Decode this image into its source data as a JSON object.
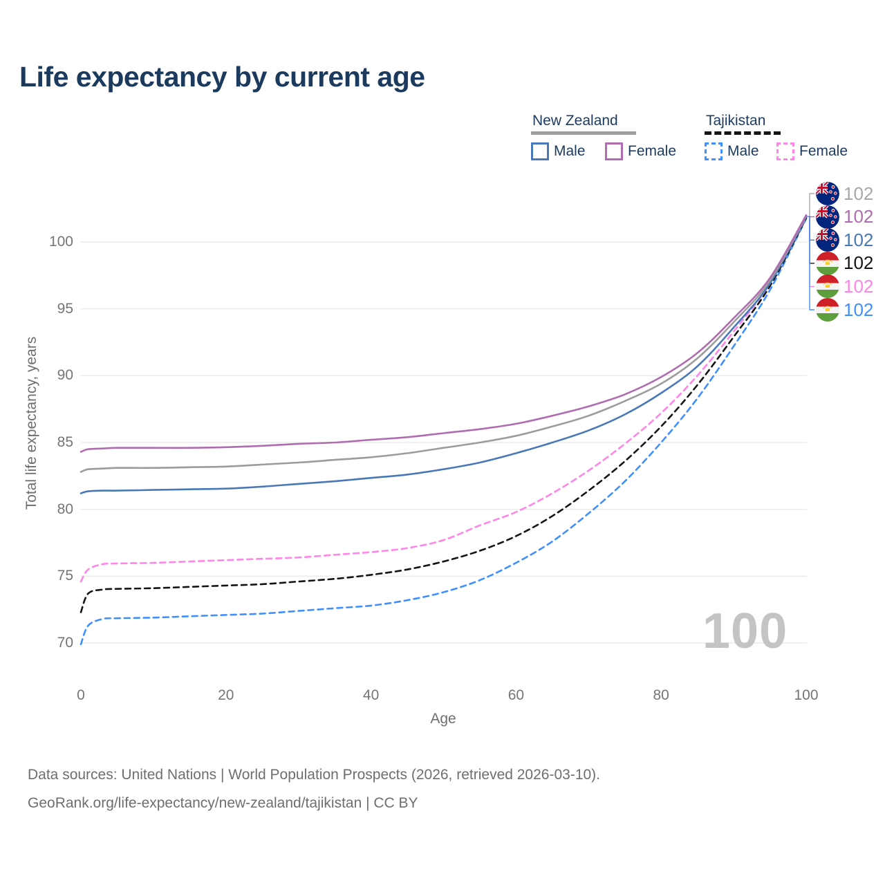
{
  "title": "Life expectancy by current age",
  "legend": {
    "groups": [
      {
        "country": "New Zealand",
        "line_style": "solid",
        "underline_color": "#9e9e9e",
        "items": [
          {
            "label": "Male",
            "color": "#4878b8"
          },
          {
            "label": "Female",
            "color": "#b06cb0"
          }
        ]
      },
      {
        "country": "Tajikistan",
        "line_style": "dashed",
        "underline_color": "#141414",
        "items": [
          {
            "label": "Male",
            "color": "#3f8fff"
          },
          {
            "label": "Female",
            "color": "#ff85e8"
          }
        ]
      }
    ]
  },
  "watermark_age": "100",
  "end_labels": [
    {
      "flag": "new-zealand",
      "value": "102",
      "color": "#a8a8a8"
    },
    {
      "flag": "new-zealand",
      "value": "102",
      "color": "#b06cb0"
    },
    {
      "flag": "new-zealand",
      "value": "102",
      "color": "#4878b8"
    },
    {
      "flag": "tajikistan",
      "value": "102",
      "color": "#141414"
    },
    {
      "flag": "tajikistan",
      "value": "102",
      "color": "#ff85e8"
    },
    {
      "flag": "tajikistan",
      "value": "102",
      "color": "#3f8fff"
    }
  ],
  "footer": {
    "line1": "Data sources: United Nations | World Population Prospects (2026, retrieved 2026-03-10).",
    "line2": "GeoRank.org/life-expectancy/new-zealand/tajikistan | CC BY"
  },
  "chart_data": {
    "type": "line",
    "title": "Life expectancy by current age",
    "xlabel": "Age",
    "ylabel": "Total life expectancy, years",
    "x_ticks": [
      0,
      20,
      40,
      60,
      80,
      100
    ],
    "y_ticks": [
      70,
      75,
      80,
      85,
      90,
      95,
      100
    ],
    "xlim": [
      0,
      100
    ],
    "ylim": [
      68,
      104
    ],
    "grid": "horizontal-only",
    "legend_position": "top-right",
    "x": [
      0,
      1,
      3,
      5,
      10,
      15,
      20,
      25,
      30,
      35,
      40,
      45,
      50,
      55,
      60,
      65,
      70,
      75,
      80,
      85,
      90,
      95,
      100
    ],
    "series": [
      {
        "name": "Tajikistan Male",
        "color": "#3f8fff",
        "dash": "dashed",
        "values": [
          69.9,
          71.3,
          71.8,
          71.85,
          71.9,
          72.0,
          72.1,
          72.2,
          72.4,
          72.6,
          72.8,
          73.2,
          73.8,
          74.7,
          76.0,
          77.6,
          79.7,
          82.1,
          85.0,
          88.3,
          92.2,
          96.4,
          101.75
        ]
      },
      {
        "name": "Tajikistan Both sexes",
        "color": "#141414",
        "dash": "dashed",
        "values": [
          72.3,
          73.7,
          74.0,
          74.05,
          74.1,
          74.2,
          74.3,
          74.4,
          74.6,
          74.8,
          75.1,
          75.5,
          76.1,
          76.9,
          78.0,
          79.5,
          81.4,
          83.6,
          86.2,
          89.3,
          92.9,
          96.7,
          101.8
        ]
      },
      {
        "name": "Tajikistan Female",
        "color": "#ff85e8",
        "dash": "dashed",
        "values": [
          74.6,
          75.5,
          75.9,
          75.95,
          76.0,
          76.1,
          76.2,
          76.3,
          76.4,
          76.6,
          76.8,
          77.1,
          77.7,
          78.8,
          79.8,
          81.2,
          82.9,
          84.9,
          87.2,
          90.0,
          93.3,
          96.9,
          101.85
        ]
      },
      {
        "name": "New Zealand Male",
        "color": "#4878b8",
        "dash": "solid",
        "values": [
          81.2,
          81.35,
          81.4,
          81.4,
          81.45,
          81.5,
          81.55,
          81.7,
          81.9,
          82.1,
          82.35,
          82.6,
          83.0,
          83.5,
          84.2,
          85.0,
          85.9,
          87.1,
          88.7,
          90.7,
          93.6,
          96.9,
          101.9
        ]
      },
      {
        "name": "New Zealand Both sexes",
        "color": "#9c9c9c",
        "dash": "solid",
        "values": [
          82.8,
          83.0,
          83.05,
          83.1,
          83.1,
          83.15,
          83.2,
          83.35,
          83.5,
          83.7,
          83.9,
          84.2,
          84.6,
          85.0,
          85.5,
          86.2,
          87.0,
          88.1,
          89.4,
          91.3,
          94.0,
          97.1,
          101.95
        ]
      },
      {
        "name": "New Zealand Female",
        "color": "#b06cb0",
        "dash": "solid",
        "values": [
          84.3,
          84.5,
          84.55,
          84.6,
          84.6,
          84.6,
          84.65,
          84.75,
          84.9,
          85.0,
          85.2,
          85.4,
          85.7,
          86.0,
          86.4,
          87.0,
          87.7,
          88.6,
          89.9,
          91.7,
          94.3,
          97.3,
          102.0
        ]
      }
    ]
  }
}
